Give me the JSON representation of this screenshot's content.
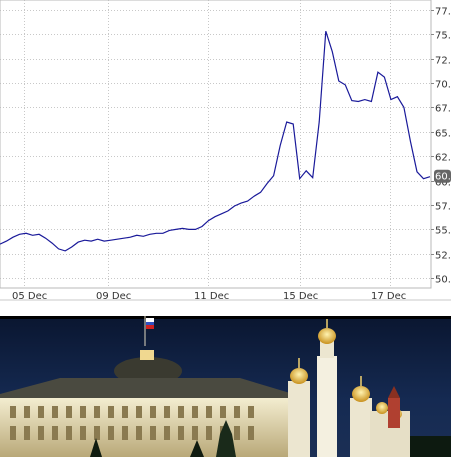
{
  "chart_data": {
    "type": "line",
    "title": "",
    "xlabel": "",
    "ylabel": "",
    "x_tick_labels": [
      "05 Dec",
      "09 Dec",
      "11 Dec",
      "15 Dec",
      "17 Dec"
    ],
    "y_tick_labels": [
      "50.",
      "52.",
      "55.",
      "57.",
      "60.",
      "62.",
      "65.",
      "67.",
      "70.",
      "72.",
      "75.",
      "77."
    ],
    "y_ticks": [
      50,
      52.5,
      55,
      57.5,
      60,
      62.5,
      65,
      67.5,
      70,
      72.5,
      75,
      77.5
    ],
    "ylim": [
      49.0,
      78.5
    ],
    "grid": true,
    "line_color": "#1a1a9a",
    "last_value_label": "60.",
    "series": [
      {
        "values": [
          53.5,
          53.8,
          54.2,
          54.5,
          54.6,
          54.4,
          54.5,
          54.1,
          53.6,
          53.0,
          52.8,
          53.2,
          53.7,
          53.9,
          53.8,
          54.0,
          53.8,
          53.9,
          54.0,
          54.1,
          54.2,
          54.4,
          54.3,
          54.5,
          54.6,
          54.6,
          54.9,
          55.0,
          55.1,
          55.0,
          55.0,
          55.3,
          55.9,
          56.3,
          56.6,
          56.9,
          57.4,
          57.7,
          57.9,
          58.4,
          58.8,
          59.7,
          60.5,
          63.6,
          66.0,
          65.8,
          60.2,
          61.0,
          60.3,
          66.0,
          75.3,
          73.2,
          70.2,
          69.8,
          68.2,
          68.1,
          68.3,
          68.1,
          71.1,
          70.6,
          68.3,
          68.6,
          67.5,
          64.0,
          60.9,
          60.2,
          60.4
        ]
      }
    ]
  }
}
